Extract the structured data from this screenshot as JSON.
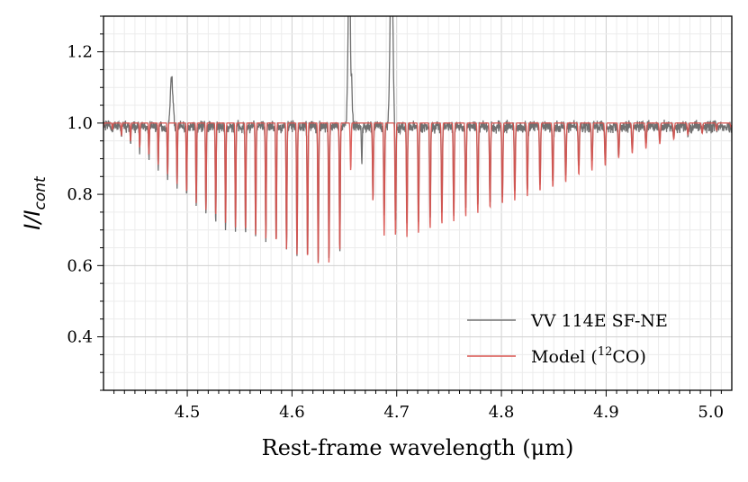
{
  "chart_data": {
    "type": "line",
    "xlabel": "Rest-frame wavelength (μm)",
    "ylabel_main": "I/I",
    "ylabel_sub": "cont",
    "xlim": [
      4.42,
      5.02
    ],
    "ylim": [
      0.25,
      1.3
    ],
    "xticks": [
      4.5,
      4.6,
      4.7,
      4.8,
      4.9,
      5.0
    ],
    "xtick_labels": [
      "4.5",
      "4.6",
      "4.7",
      "4.8",
      "4.9",
      "5.0"
    ],
    "yticks": [
      0.4,
      0.6,
      0.8,
      1.0,
      1.2
    ],
    "ytick_labels": [
      "0.4",
      "0.6",
      "0.8",
      "1.0",
      "1.2"
    ],
    "grid": true,
    "legend_position": "lower-right",
    "series": [
      {
        "name": "VV 114E SF-NE",
        "color": "#707070",
        "note_peaks": [
          [
            4.485,
            1.06
          ],
          [
            4.655,
            1.3
          ],
          [
            4.695,
            1.3
          ]
        ],
        "x": [
          4.42,
          4.43,
          4.44,
          4.45,
          4.46,
          4.47,
          4.48,
          4.49,
          4.5,
          4.51,
          4.52,
          4.53,
          4.54,
          4.55,
          4.56,
          4.57,
          4.58,
          4.59,
          4.6,
          4.61,
          4.62,
          4.63,
          4.64,
          4.65,
          4.66,
          4.67,
          4.68,
          4.69,
          4.7,
          4.71,
          4.72,
          4.73,
          4.74,
          4.75,
          4.76,
          4.77,
          4.78,
          4.79,
          4.8,
          4.81,
          4.82,
          4.83,
          4.84,
          4.85,
          4.86,
          4.87,
          4.88,
          4.89,
          4.9,
          4.91,
          4.92,
          4.93,
          4.94,
          4.95,
          4.96,
          4.97,
          4.98,
          4.99,
          5.0,
          5.01,
          5.02
        ],
        "min_depth": [
          0.99,
          0.97,
          0.95,
          0.93,
          0.91,
          0.88,
          0.85,
          0.82,
          0.79,
          0.76,
          0.73,
          0.71,
          0.7,
          0.69,
          0.68,
          0.67,
          0.66,
          0.65,
          0.64,
          0.63,
          0.62,
          0.61,
          0.62,
          0.66,
          0.9,
          0.88,
          0.75,
          0.73,
          0.72,
          0.72,
          0.73,
          0.73,
          0.74,
          0.74,
          0.75,
          0.76,
          0.77,
          0.78,
          0.79,
          0.8,
          0.81,
          0.82,
          0.83,
          0.84,
          0.85,
          0.87,
          0.88,
          0.89,
          0.9,
          0.91,
          0.92,
          0.93,
          0.94,
          0.95,
          0.96,
          0.96,
          0.97,
          0.97,
          0.98,
          0.98,
          0.98
        ]
      },
      {
        "name": "Model (¹²CO)",
        "name_main": "Model (",
        "name_sup": "12",
        "name_tail": "CO)",
        "color": "#d9534f",
        "x": [
          4.42,
          4.43,
          4.44,
          4.45,
          4.46,
          4.47,
          4.48,
          4.49,
          4.5,
          4.51,
          4.52,
          4.53,
          4.54,
          4.55,
          4.56,
          4.57,
          4.58,
          4.59,
          4.6,
          4.61,
          4.62,
          4.63,
          4.64,
          4.65,
          4.66,
          4.67,
          4.68,
          4.69,
          4.7,
          4.71,
          4.72,
          4.73,
          4.74,
          4.75,
          4.76,
          4.77,
          4.78,
          4.79,
          4.8,
          4.81,
          4.82,
          4.83,
          4.84,
          4.85,
          4.86,
          4.87,
          4.88,
          4.89,
          4.9,
          4.91,
          4.92,
          4.93,
          4.94,
          4.95,
          4.96,
          4.97,
          4.98,
          4.99,
          5.0,
          5.01,
          5.02
        ],
        "min_depth": [
          0.99,
          0.98,
          0.96,
          0.94,
          0.92,
          0.89,
          0.86,
          0.83,
          0.8,
          0.77,
          0.75,
          0.73,
          0.71,
          0.7,
          0.69,
          0.68,
          0.67,
          0.65,
          0.64,
          0.62,
          0.61,
          0.6,
          0.61,
          0.66,
          1.0,
          1.0,
          0.7,
          0.68,
          0.68,
          0.68,
          0.69,
          0.7,
          0.71,
          0.72,
          0.73,
          0.74,
          0.75,
          0.76,
          0.77,
          0.78,
          0.79,
          0.8,
          0.81,
          0.82,
          0.83,
          0.85,
          0.86,
          0.87,
          0.88,
          0.9,
          0.91,
          0.92,
          0.93,
          0.94,
          0.95,
          0.96,
          0.97,
          0.97,
          0.98,
          0.98,
          0.99
        ]
      }
    ]
  }
}
